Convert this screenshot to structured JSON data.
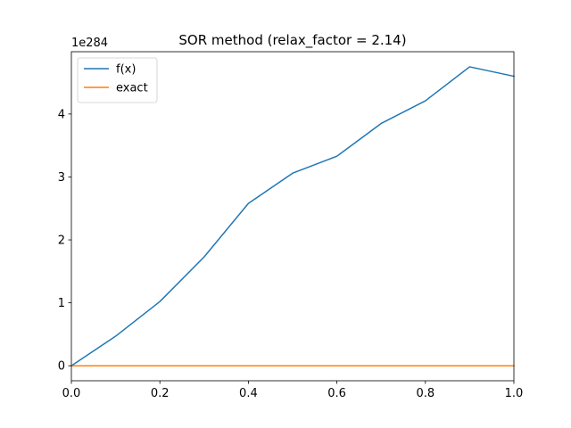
{
  "chart_data": {
    "type": "line",
    "title": "SOR method (relax_factor = 2.14)",
    "xlabel": "",
    "ylabel": "",
    "y_offset_label": "1e284",
    "xlim": [
      0.0,
      1.0
    ],
    "ylim": [
      -0.238,
      4.99
    ],
    "x_ticks": [
      0.0,
      0.2,
      0.4,
      0.6,
      0.8,
      1.0
    ],
    "x_tick_labels": [
      "0.0",
      "0.2",
      "0.4",
      "0.6",
      "0.8",
      "1.0"
    ],
    "y_ticks": [
      0,
      1,
      2,
      3,
      4
    ],
    "y_tick_labels": [
      "0",
      "1",
      "2",
      "3",
      "4"
    ],
    "grid": false,
    "legend_position": "top-left",
    "x": [
      0.0,
      0.1,
      0.2,
      0.3,
      0.4,
      0.5,
      0.6,
      0.7,
      0.8,
      0.9,
      1.0
    ],
    "series": [
      {
        "name": "f(x)",
        "color": "#1f77b4",
        "values": [
          0.0,
          0.47,
          1.02,
          1.73,
          2.58,
          3.06,
          3.33,
          3.85,
          4.21,
          4.75,
          4.6
        ]
      },
      {
        "name": "exact",
        "color": "#ff7f0e",
        "values": [
          0,
          0,
          0,
          0,
          0,
          0,
          0,
          0,
          0,
          0,
          0
        ]
      }
    ]
  }
}
